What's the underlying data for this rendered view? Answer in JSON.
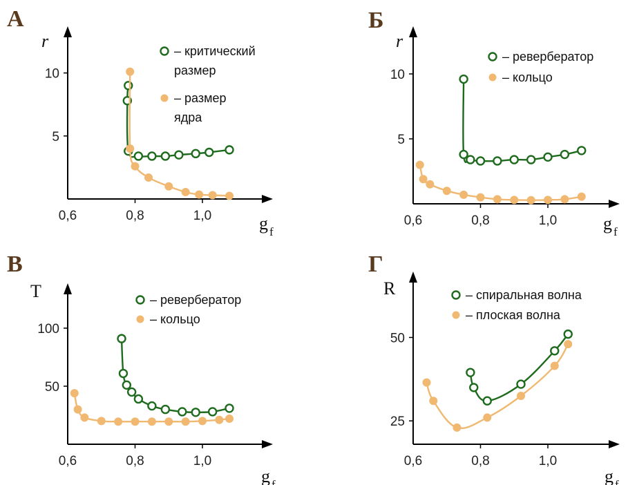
{
  "colors": {
    "green": "#1e6b1e",
    "orange": "#f0b870",
    "axis": "#000000"
  },
  "chart_data": [
    {
      "id": "A",
      "type": "line",
      "panel_letter": "А",
      "xlabel": "g",
      "xlabel_sub": "f",
      "ylabel": "r",
      "ylabel_italic": true,
      "xlim": [
        0.6,
        1.12
      ],
      "ylim": [
        0,
        12.5
      ],
      "xticks": [
        {
          "v": 0.6,
          "label": "0,6"
        },
        {
          "v": 0.8,
          "label": "0,8"
        },
        {
          "v": 1.0,
          "label": "1,0"
        }
      ],
      "yticks": [
        {
          "v": 5,
          "label": "5"
        },
        {
          "v": 10,
          "label": "10"
        }
      ],
      "legend": [
        {
          "series": 0,
          "lines": [
            "– критический",
            "размер"
          ]
        },
        {
          "series": 1,
          "lines": [
            "– размер",
            "ядра"
          ]
        }
      ],
      "series": [
        {
          "marker": "open",
          "color": "green",
          "x": [
            0.78,
            0.777,
            0.78,
            0.81,
            0.85,
            0.89,
            0.93,
            0.98,
            1.02,
            1.08
          ],
          "y": [
            9.0,
            7.8,
            3.8,
            3.4,
            3.4,
            3.4,
            3.5,
            3.6,
            3.7,
            3.9
          ]
        },
        {
          "marker": "filled",
          "color": "orange",
          "x": [
            0.785,
            0.785,
            0.8,
            0.84,
            0.9,
            0.95,
            0.99,
            1.03,
            1.08
          ],
          "y": [
            10.1,
            4.0,
            2.6,
            1.7,
            1.0,
            0.55,
            0.35,
            0.3,
            0.25
          ]
        }
      ]
    },
    {
      "id": "B",
      "type": "line",
      "panel_letter": "Б",
      "xlabel": "g",
      "xlabel_sub": "f",
      "ylabel": "r",
      "ylabel_italic": true,
      "xlim": [
        0.6,
        1.12
      ],
      "ylim": [
        0,
        12.5
      ],
      "xticks": [
        {
          "v": 0.6,
          "label": "0,6"
        },
        {
          "v": 0.8,
          "label": "0,8"
        },
        {
          "v": 1.0,
          "label": "1,0"
        }
      ],
      "yticks": [
        {
          "v": 5,
          "label": "5"
        },
        {
          "v": 10,
          "label": "10"
        }
      ],
      "legend": [
        {
          "series": 0,
          "lines": [
            "– ревербератор"
          ]
        },
        {
          "series": 1,
          "lines": [
            "– кольцо"
          ]
        }
      ],
      "series": [
        {
          "marker": "open",
          "color": "green",
          "x": [
            0.75,
            0.75,
            0.77,
            0.8,
            0.85,
            0.9,
            0.95,
            1.0,
            1.05,
            1.1
          ],
          "y": [
            9.6,
            3.8,
            3.4,
            3.3,
            3.3,
            3.4,
            3.4,
            3.6,
            3.8,
            4.1
          ]
        },
        {
          "marker": "filled",
          "color": "orange",
          "x": [
            0.62,
            0.63,
            0.65,
            0.7,
            0.75,
            0.8,
            0.85,
            0.9,
            0.95,
            1.0,
            1.05,
            1.1
          ],
          "y": [
            3.0,
            1.9,
            1.5,
            1.0,
            0.7,
            0.5,
            0.35,
            0.3,
            0.28,
            0.3,
            0.35,
            0.55
          ]
        }
      ]
    },
    {
      "id": "C",
      "type": "line",
      "panel_letter": "В",
      "xlabel": "g",
      "xlabel_sub": "f",
      "ylabel": "T",
      "ylabel_italic": false,
      "xlim": [
        0.6,
        1.12
      ],
      "ylim": [
        0,
        125
      ],
      "xticks": [
        {
          "v": 0.6,
          "label": "0,6"
        },
        {
          "v": 0.8,
          "label": "0,8"
        },
        {
          "v": 1.0,
          "label": "1,0"
        }
      ],
      "yticks": [
        {
          "v": 50,
          "label": "50"
        },
        {
          "v": 100,
          "label": "100"
        }
      ],
      "legend": [
        {
          "series": 0,
          "lines": [
            "– ревербератор"
          ]
        },
        {
          "series": 1,
          "lines": [
            "– кольцо"
          ]
        }
      ],
      "series": [
        {
          "marker": "open",
          "color": "green",
          "x": [
            0.76,
            0.765,
            0.775,
            0.79,
            0.81,
            0.85,
            0.89,
            0.94,
            0.98,
            1.03,
            1.08
          ],
          "y": [
            91,
            61,
            51,
            45,
            39,
            33,
            30,
            28,
            27.5,
            28,
            31
          ]
        },
        {
          "marker": "filled",
          "color": "orange",
          "x": [
            0.62,
            0.63,
            0.65,
            0.7,
            0.75,
            0.8,
            0.85,
            0.9,
            0.95,
            1.0,
            1.05,
            1.08
          ],
          "y": [
            44,
            30,
            23,
            20,
            19.5,
            19.5,
            19.5,
            19.5,
            19.5,
            20,
            21,
            22
          ]
        }
      ]
    },
    {
      "id": "D",
      "type": "line",
      "panel_letter": "Г",
      "xlabel": "g",
      "xlabel_sub": "f",
      "ylabel": "R",
      "ylabel_italic": false,
      "xlim": [
        0.6,
        1.12
      ],
      "ylim": [
        18,
        65
      ],
      "xticks": [
        {
          "v": 0.6,
          "label": "0,6"
        },
        {
          "v": 0.8,
          "label": "0,8"
        },
        {
          "v": 1.0,
          "label": "1,0"
        }
      ],
      "yticks": [
        {
          "v": 25,
          "label": "25"
        },
        {
          "v": 50,
          "label": "50"
        }
      ],
      "legend": [
        {
          "series": 0,
          "lines": [
            "– спиральная волна"
          ]
        },
        {
          "series": 1,
          "lines": [
            "– плоская волна"
          ]
        }
      ],
      "series": [
        {
          "marker": "open",
          "color": "green",
          "x": [
            0.77,
            0.78,
            0.82,
            0.92,
            1.02,
            1.06
          ],
          "y": [
            39.5,
            35,
            31,
            36,
            46,
            51
          ]
        },
        {
          "marker": "filled",
          "color": "orange",
          "x": [
            0.64,
            0.66,
            0.73,
            0.82,
            0.92,
            1.02,
            1.06
          ],
          "y": [
            36.5,
            31,
            23,
            26,
            32.5,
            41.5,
            48
          ]
        }
      ]
    }
  ]
}
